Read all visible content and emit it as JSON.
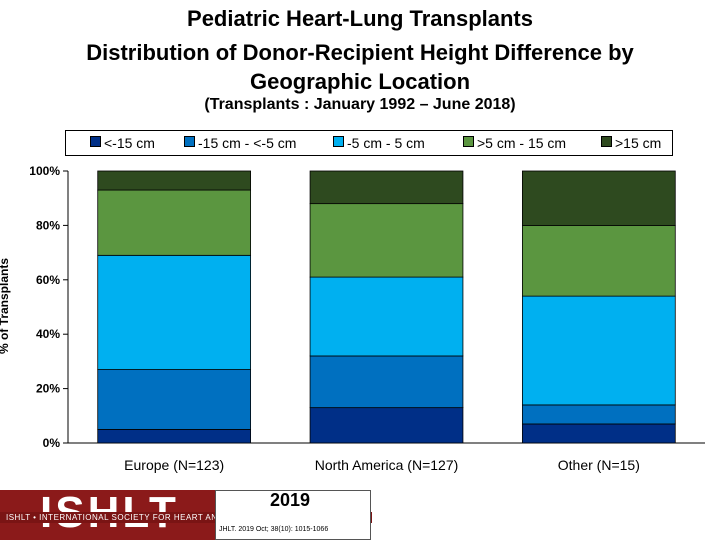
{
  "header": {
    "title": "Pediatric Heart-Lung Transplants",
    "subtitle_line1": "Distribution of Donor-Recipient Height Difference by",
    "subtitle_line2": "Geographic Location",
    "note": "(Transplants : January 1992 – June 2018)"
  },
  "chart_data": {
    "type": "bar",
    "stacked": true,
    "normalized": true,
    "categories": [
      "Europe (N=123)",
      "North America (N=127)",
      "Other (N=15)"
    ],
    "series": [
      {
        "name": "<-15 cm",
        "color": "#002f87",
        "values": [
          5,
          13,
          7
        ]
      },
      {
        "name": "-15 cm - <-5 cm",
        "color": "#0070c0",
        "values": [
          22,
          19,
          7
        ]
      },
      {
        "name": "-5 cm - 5 cm",
        "color": "#00b0f0",
        "values": [
          42,
          29,
          40
        ]
      },
      {
        "name": ">5 cm - 15 cm",
        "color": "#5b9640",
        "values": [
          24,
          27,
          26
        ]
      },
      {
        "name": ">15 cm",
        "color": "#2e4a1f",
        "values": [
          7,
          12,
          20
        ]
      }
    ],
    "ylabel": "% of Transplants",
    "xlabel": "",
    "ylim": [
      0,
      100
    ],
    "yticks": [
      "0%",
      "20%",
      "40%",
      "60%",
      "80%",
      "100%"
    ],
    "legend_position": "top"
  },
  "footer": {
    "logo_text": "ISHLT",
    "society_text": "ISHLT • INTERNATIONAL SOCIETY FOR HEART AND LUNG TRANSPLANTATION",
    "year": "2019",
    "citation": "JHLT. 2019 Oct; 38(10): 1015-1066"
  }
}
